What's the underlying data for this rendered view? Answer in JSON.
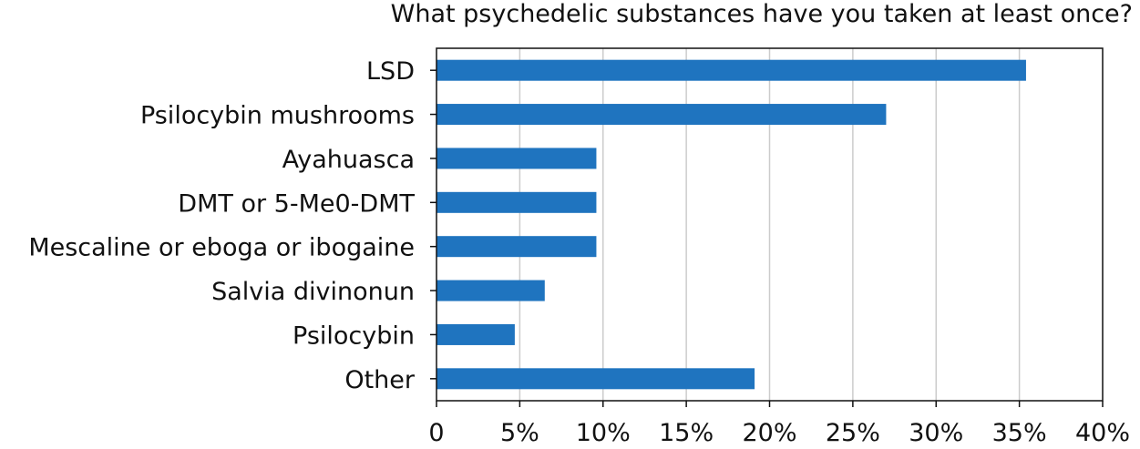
{
  "chart_data": {
    "type": "bar",
    "orientation": "horizontal",
    "title": "What psychedelic substances have you taken at least once?",
    "xlabel": "",
    "ylabel": "",
    "categories": [
      "LSD",
      "Psilocybin mushrooms",
      "Ayahuasca",
      "DMT or 5-Me0-DMT",
      "Mescaline or eboga or ibogaine",
      "Salvia divinonun",
      "Psilocybin",
      "Other"
    ],
    "values": [
      35.4,
      27.0,
      9.6,
      9.6,
      9.6,
      6.5,
      4.7,
      19.1
    ],
    "xlim": [
      0,
      40
    ],
    "x_ticks": [
      0,
      5,
      10,
      15,
      20,
      25,
      30,
      35,
      40
    ],
    "x_tick_labels": [
      "0",
      "5%",
      "10%",
      "15%",
      "20%",
      "25%",
      "30%",
      "35%",
      "40%"
    ],
    "grid": "vertical",
    "bar_color": "#1f74bf",
    "grid_color": "#cccccc",
    "axis_color": "#111111"
  }
}
